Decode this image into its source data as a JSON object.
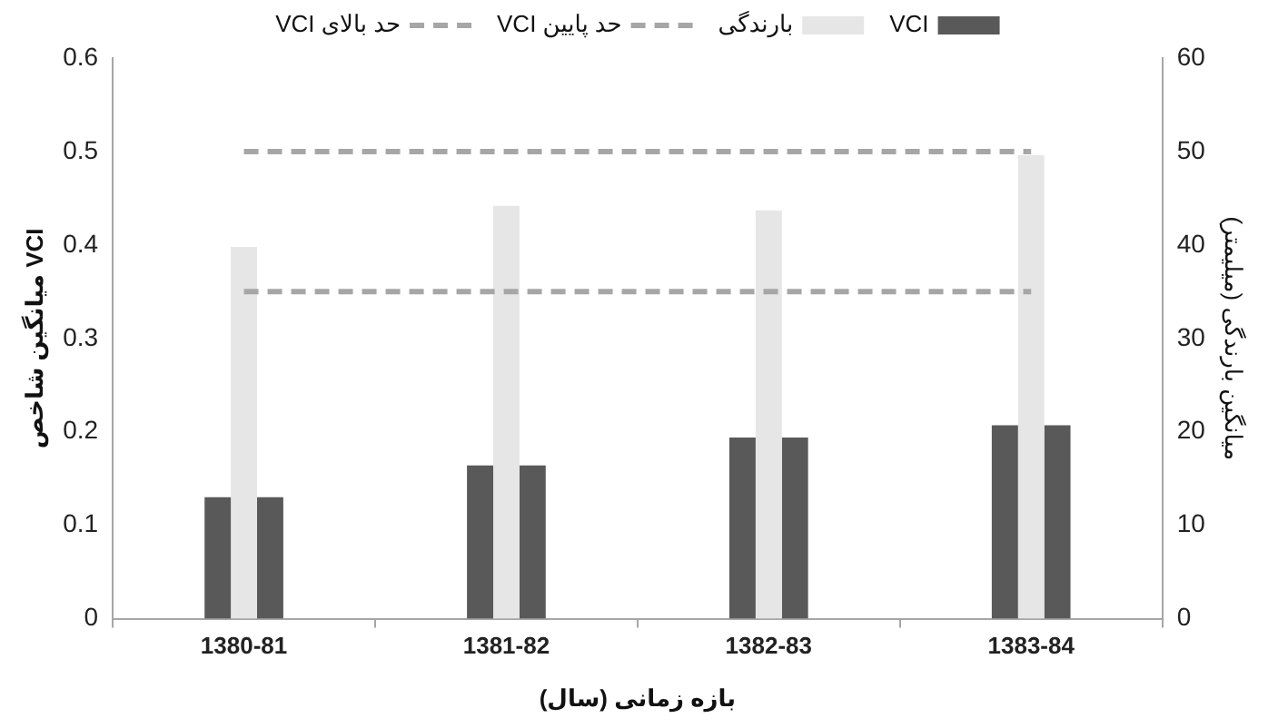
{
  "chart_data": {
    "type": "bar",
    "xlabel": "بازه زمانی (سال)",
    "ylabel": "میانگین شاخص VCI",
    "y2label": "میانگین بارندگی (میلیمتر)",
    "categories": [
      "1380-81",
      "1381-82",
      "1382-83",
      "1383-84"
    ],
    "series": [
      {
        "name": "VCI",
        "color": "#595959",
        "values": [
          0.13,
          0.164,
          0.194,
          0.207
        ]
      },
      {
        "name": "بارندگی",
        "color": "#e6e6e6",
        "axis": "y2",
        "values": [
          39.8,
          44.2,
          43.7,
          49.6
        ]
      },
      {
        "color": "#595959",
        "values": [
          0.13,
          0.164,
          0.194,
          0.207
        ]
      },
      {
        "name": "حد پایین VCI",
        "type": "line",
        "color": "#a6a6a6",
        "line_style": "dashed",
        "marker": "none",
        "values": [
          0.35,
          0.35,
          0.35,
          0.35
        ]
      },
      {
        "name": "حد بالای VCI",
        "type": "line",
        "color": "#a6a6a6",
        "line_style": "dashed",
        "marker": "none",
        "values": [
          0.5,
          0.5,
          0.5,
          0.5
        ]
      }
    ],
    "ylim": [
      0,
      0.6
    ],
    "yticks": [
      0,
      0.1,
      0.2,
      0.3,
      0.4,
      0.5,
      0.6
    ],
    "y2lim": [
      0,
      60
    ],
    "y2ticks": [
      0,
      10,
      20,
      30,
      40,
      50,
      60
    ],
    "grid": false,
    "legend": "top"
  }
}
